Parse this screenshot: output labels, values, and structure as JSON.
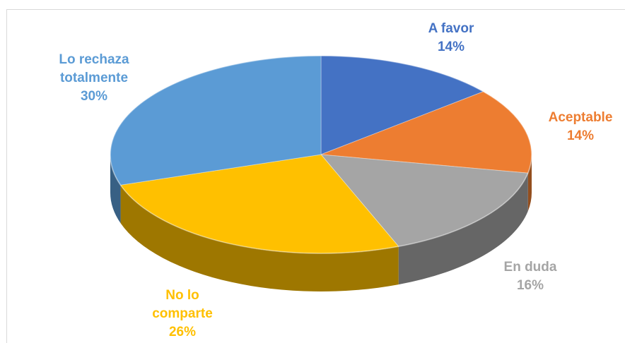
{
  "chart_data": {
    "type": "pie",
    "title": "",
    "slices": [
      {
        "label": "A favor",
        "value": 14,
        "value_label": "14%",
        "color": "#4472c4"
      },
      {
        "label": "Aceptable",
        "value": 14,
        "value_label": "14%",
        "color": "#ed7d31"
      },
      {
        "label": "En duda",
        "value": 16,
        "value_label": "16%",
        "color": "#a5a5a5"
      },
      {
        "label": "No lo comparte",
        "value": 26,
        "value_label": "26%",
        "color": "#ffc000"
      },
      {
        "label": "Lo rechaza totalmente",
        "value": 30,
        "value_label": "30%",
        "color": "#5b9bd5"
      }
    ],
    "style": "3d",
    "legend": "none",
    "labels": {
      "a_favor": {
        "line1": "A favor",
        "pct": "14%"
      },
      "aceptable": {
        "line1": "Aceptable",
        "pct": "14%"
      },
      "en_duda": {
        "line1": "En duda",
        "pct": "16%"
      },
      "no_lo_comparte": {
        "line1": "No lo",
        "line2": "comparte",
        "pct": "26%"
      },
      "lo_rechaza": {
        "line1": "Lo rechaza",
        "line2": "totalmente",
        "pct": "30%"
      }
    }
  }
}
